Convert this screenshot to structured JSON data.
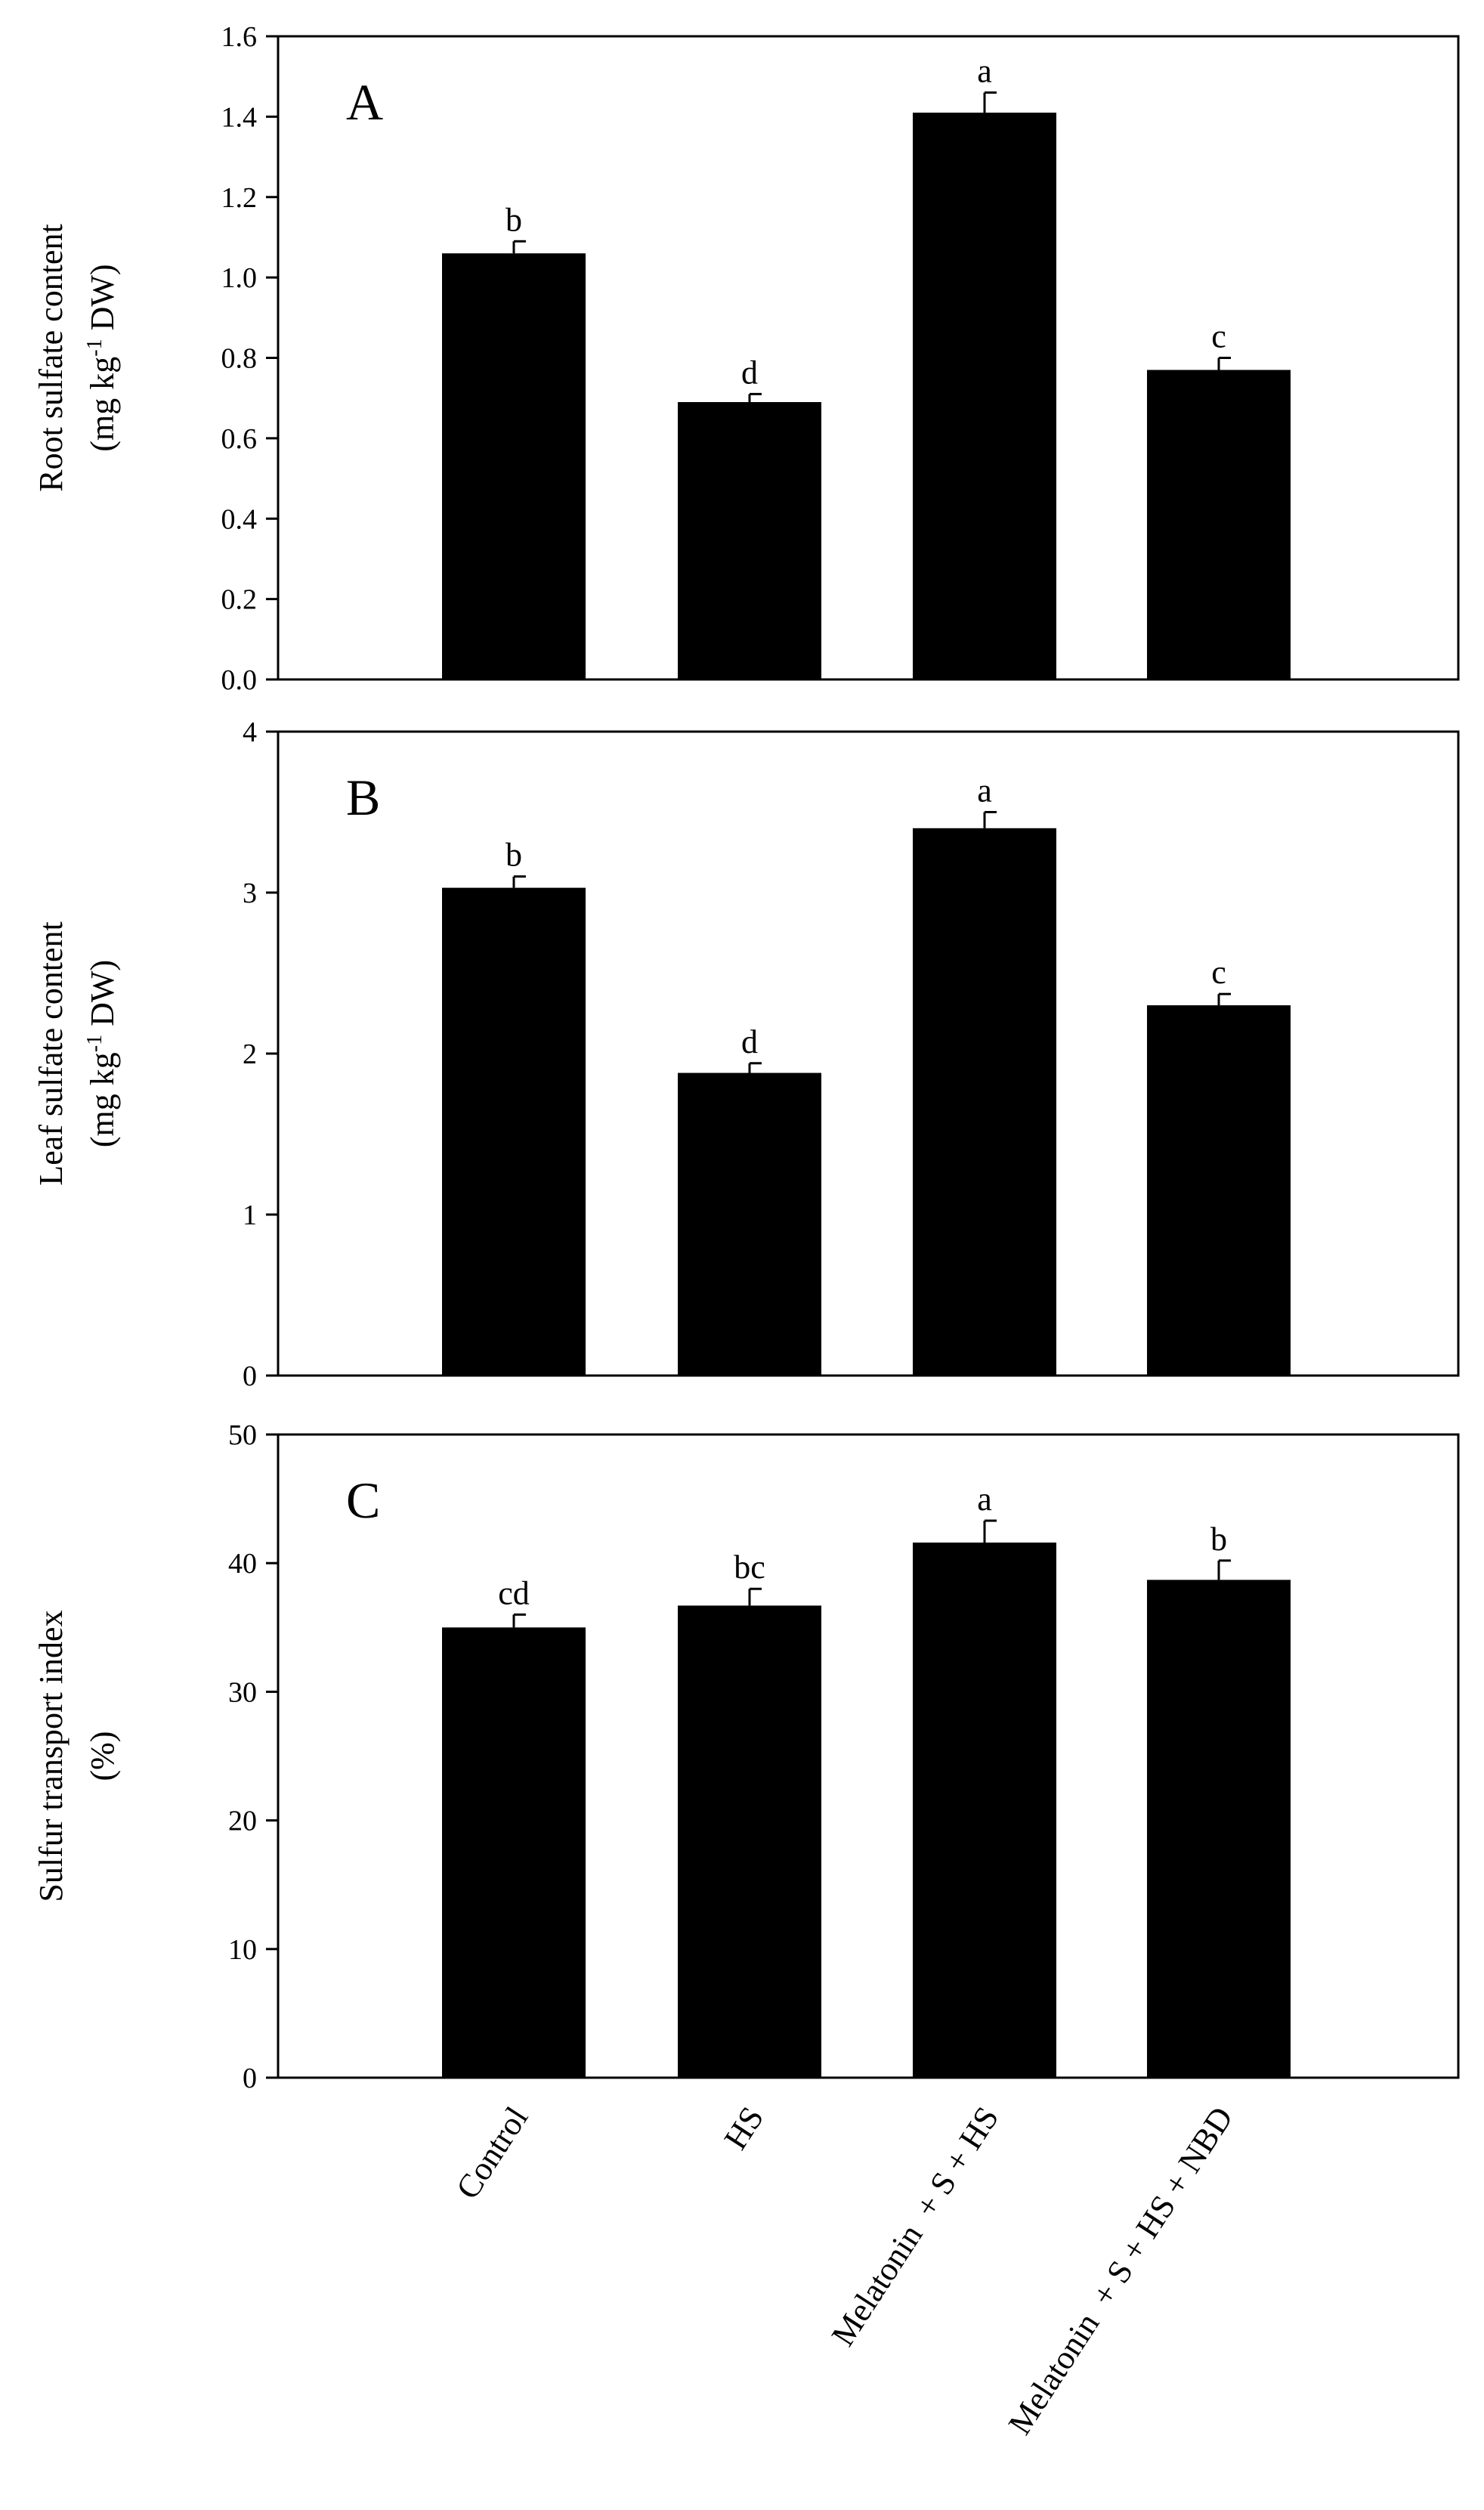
{
  "figure_title": "",
  "chart_data": [
    {
      "type": "bar",
      "panel_label": "A",
      "title": "",
      "xlabel": "",
      "ylabel_line1": "Root sulfate content",
      "ylabel_line2": {
        "pre": "(mg kg",
        "sup": "-1",
        "post": " DW)"
      },
      "ylim": [
        0,
        1.6
      ],
      "yticks": [
        0.0,
        0.2,
        0.4,
        0.6,
        0.8,
        1.0,
        1.2,
        1.4,
        1.6
      ],
      "ytick_labels": [
        "0.0",
        "0.2",
        "0.4",
        "0.6",
        "0.8",
        "1.0",
        "1.2",
        "1.4",
        "1.6"
      ],
      "categories": [
        "Control",
        "HS",
        "Melatonin  + S + HS",
        "Melatonin  + S + HS + NBD"
      ],
      "values": [
        1.06,
        0.69,
        1.41,
        0.77
      ],
      "errors": [
        0.03,
        0.02,
        0.05,
        0.03
      ],
      "significance": [
        "b",
        "d",
        "a",
        "c"
      ],
      "bar_color": "#000000",
      "grid": false
    },
    {
      "type": "bar",
      "panel_label": "B",
      "title": "",
      "xlabel": "",
      "ylabel_line1": "Leaf sulfate content",
      "ylabel_line2": {
        "pre": "(mg kg",
        "sup": "-1",
        "post": " DW)"
      },
      "ylim": [
        0,
        4
      ],
      "yticks": [
        0,
        1,
        2,
        3,
        4
      ],
      "ytick_labels": [
        "0",
        "1",
        "2",
        "3",
        "4"
      ],
      "categories": [
        "Control",
        "HS",
        "Melatonin  + S + HS",
        "Melatonin  + S + HS + NBD"
      ],
      "values": [
        3.03,
        1.88,
        3.4,
        2.3
      ],
      "errors": [
        0.07,
        0.06,
        0.1,
        0.07
      ],
      "significance": [
        "b",
        "d",
        "a",
        "c"
      ],
      "bar_color": "#000000",
      "grid": false
    },
    {
      "type": "bar",
      "panel_label": "C",
      "title": "",
      "xlabel": "",
      "ylabel_line1": "Sulfur transport index",
      "ylabel_line2": {
        "pre": "(%)",
        "sup": "",
        "post": ""
      },
      "ylim": [
        0,
        50
      ],
      "yticks": [
        0,
        10,
        20,
        30,
        40,
        50
      ],
      "ytick_labels": [
        "0",
        "10",
        "20",
        "30",
        "40",
        "50"
      ],
      "categories": [
        "Control",
        "HS",
        "Melatonin  + S + HS",
        "Melatonin  + S + HS + NBD"
      ],
      "values": [
        35.0,
        36.7,
        41.6,
        38.7
      ],
      "errors": [
        1.0,
        1.3,
        1.7,
        1.5
      ],
      "significance": [
        "cd",
        "bc",
        "a",
        "b"
      ],
      "bar_color": "#000000",
      "grid": false
    }
  ],
  "x_category_labels": [
    "Control",
    "HS",
    "Melatonin  + S + HS",
    "Melatonin  + S + HS + NBD"
  ]
}
